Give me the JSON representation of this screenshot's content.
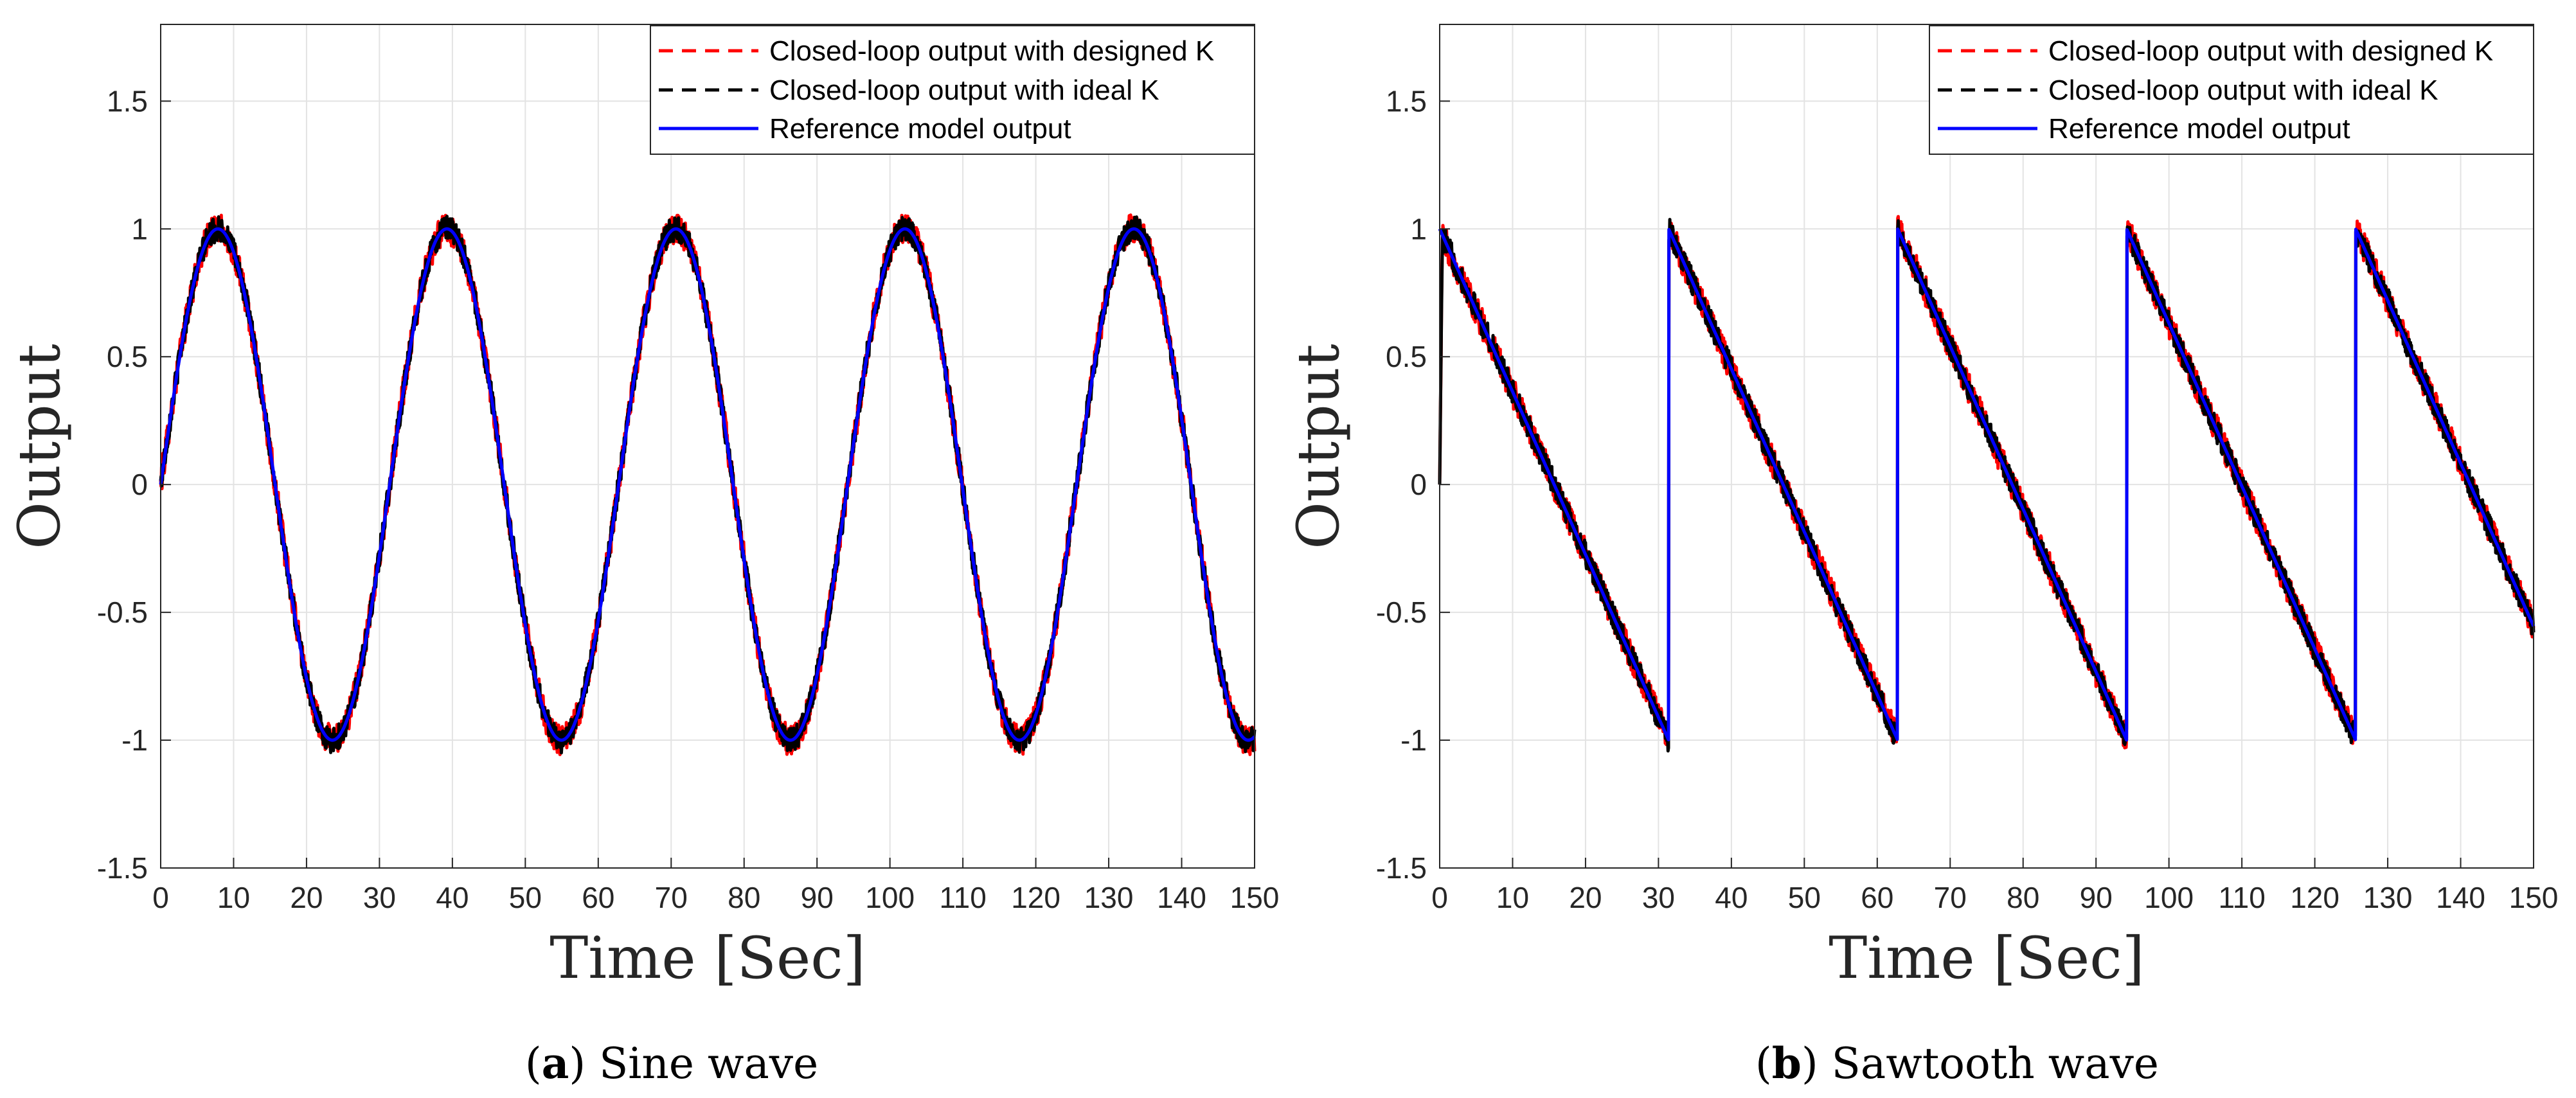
{
  "chart_data": [
    {
      "type": "line",
      "caption": {
        "letter": "a",
        "text": " Sine wave"
      },
      "xlabel": "Time [Sec]",
      "ylabel": "Output",
      "xlim": [
        0,
        150
      ],
      "ylim": [
        -1.5,
        1.8
      ],
      "xticks": [
        0,
        10,
        20,
        30,
        40,
        50,
        60,
        70,
        80,
        90,
        100,
        110,
        120,
        130,
        140,
        150
      ],
      "xtick_labels": [
        "0",
        "10",
        "20",
        "30",
        "40",
        "50",
        "60",
        "70",
        "80",
        "90",
        "100",
        "110",
        "120",
        "130",
        "140",
        "150"
      ],
      "yticks": [
        -1.5,
        -1,
        -0.5,
        0,
        0.5,
        1,
        1.5
      ],
      "ytick_labels": [
        "-1.5",
        "-1",
        "-0.5",
        "0",
        "0.5",
        "1",
        "1.5"
      ],
      "grid": true,
      "legend_position": "top-right",
      "signal": {
        "shape": "sine",
        "amplitude": 1,
        "period_sec": 31.4
      },
      "series": [
        {
          "name": "Closed-loop output with designed K",
          "color": "#ff0000",
          "style": "dashed",
          "noise": 0.06
        },
        {
          "name": "Closed-loop output with ideal K",
          "color": "#000000",
          "style": "dashed",
          "noise": 0.05
        },
        {
          "name": "Reference model output",
          "color": "#0000ff",
          "style": "solid",
          "noise": 0
        }
      ]
    },
    {
      "type": "line",
      "caption": {
        "letter": "b",
        "text": " Sawtooth wave"
      },
      "xlabel": "Time [Sec]",
      "ylabel": "Output",
      "xlim": [
        0,
        150
      ],
      "ylim": [
        -1.5,
        1.8
      ],
      "xticks": [
        0,
        10,
        20,
        30,
        40,
        50,
        60,
        70,
        80,
        90,
        100,
        110,
        120,
        130,
        140,
        150
      ],
      "xtick_labels": [
        "0",
        "10",
        "20",
        "30",
        "40",
        "50",
        "60",
        "70",
        "80",
        "90",
        "100",
        "110",
        "120",
        "130",
        "140",
        "150"
      ],
      "yticks": [
        -1.5,
        -1,
        -0.5,
        0,
        0.5,
        1,
        1.5
      ],
      "ytick_labels": [
        "-1.5",
        "-1",
        "-0.5",
        "0",
        "0.5",
        "1",
        "1.5"
      ],
      "grid": true,
      "legend_position": "top-right",
      "signal": {
        "shape": "sawtooth",
        "high": 1,
        "low": -1,
        "period_sec": 31.4
      },
      "series": [
        {
          "name": "Closed-loop output with designed K",
          "color": "#ff0000",
          "style": "dashed",
          "noise": 0.06
        },
        {
          "name": "Closed-loop output with ideal K",
          "color": "#000000",
          "style": "dashed",
          "noise": 0.05
        },
        {
          "name": "Reference model output",
          "color": "#0000ff",
          "style": "solid",
          "noise": 0
        }
      ]
    }
  ]
}
